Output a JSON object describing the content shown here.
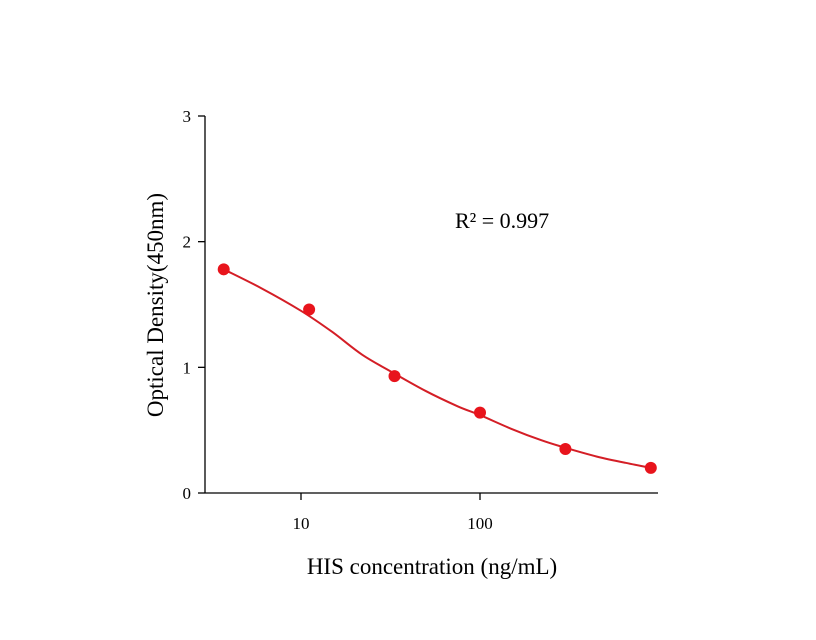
{
  "chart_data": {
    "type": "scatter",
    "title": "",
    "xlabel": "HIS concentration (ng/mL)",
    "ylabel": "Optical Density(450nm)",
    "x_scale": "log",
    "xlim": [
      3,
      800
    ],
    "ylim": [
      0,
      3
    ],
    "x_ticks": [
      10,
      100
    ],
    "x_tick_labels": [
      "10",
      "100"
    ],
    "y_ticks": [
      0,
      1,
      2,
      3
    ],
    "y_tick_labels": [
      "0",
      "1",
      "2",
      "3"
    ],
    "grid": false,
    "legend": "none",
    "annotation": "R² = 0.997",
    "series": [
      {
        "points": [
          {
            "x": 3.7,
            "y": 1.78
          },
          {
            "x": 11.1,
            "y": 1.46
          },
          {
            "x": 33.3,
            "y": 0.93
          },
          {
            "x": 100,
            "y": 0.64
          },
          {
            "x": 300,
            "y": 0.35
          },
          {
            "x": 900,
            "y": 0.2
          }
        ]
      }
    ],
    "fit_curve": [
      {
        "x": 3.7,
        "y": 1.78
      },
      {
        "x": 6,
        "y": 1.63
      },
      {
        "x": 10,
        "y": 1.45
      },
      {
        "x": 15,
        "y": 1.28
      },
      {
        "x": 22,
        "y": 1.1
      },
      {
        "x": 33.3,
        "y": 0.95
      },
      {
        "x": 50,
        "y": 0.81
      },
      {
        "x": 75,
        "y": 0.69
      },
      {
        "x": 100,
        "y": 0.62
      },
      {
        "x": 150,
        "y": 0.51
      },
      {
        "x": 220,
        "y": 0.42
      },
      {
        "x": 300,
        "y": 0.36
      },
      {
        "x": 450,
        "y": 0.29
      },
      {
        "x": 650,
        "y": 0.24
      },
      {
        "x": 900,
        "y": 0.2
      }
    ],
    "colors": {
      "series": "#e8141c",
      "curve": "#d41e26",
      "axis": "#000000"
    }
  }
}
